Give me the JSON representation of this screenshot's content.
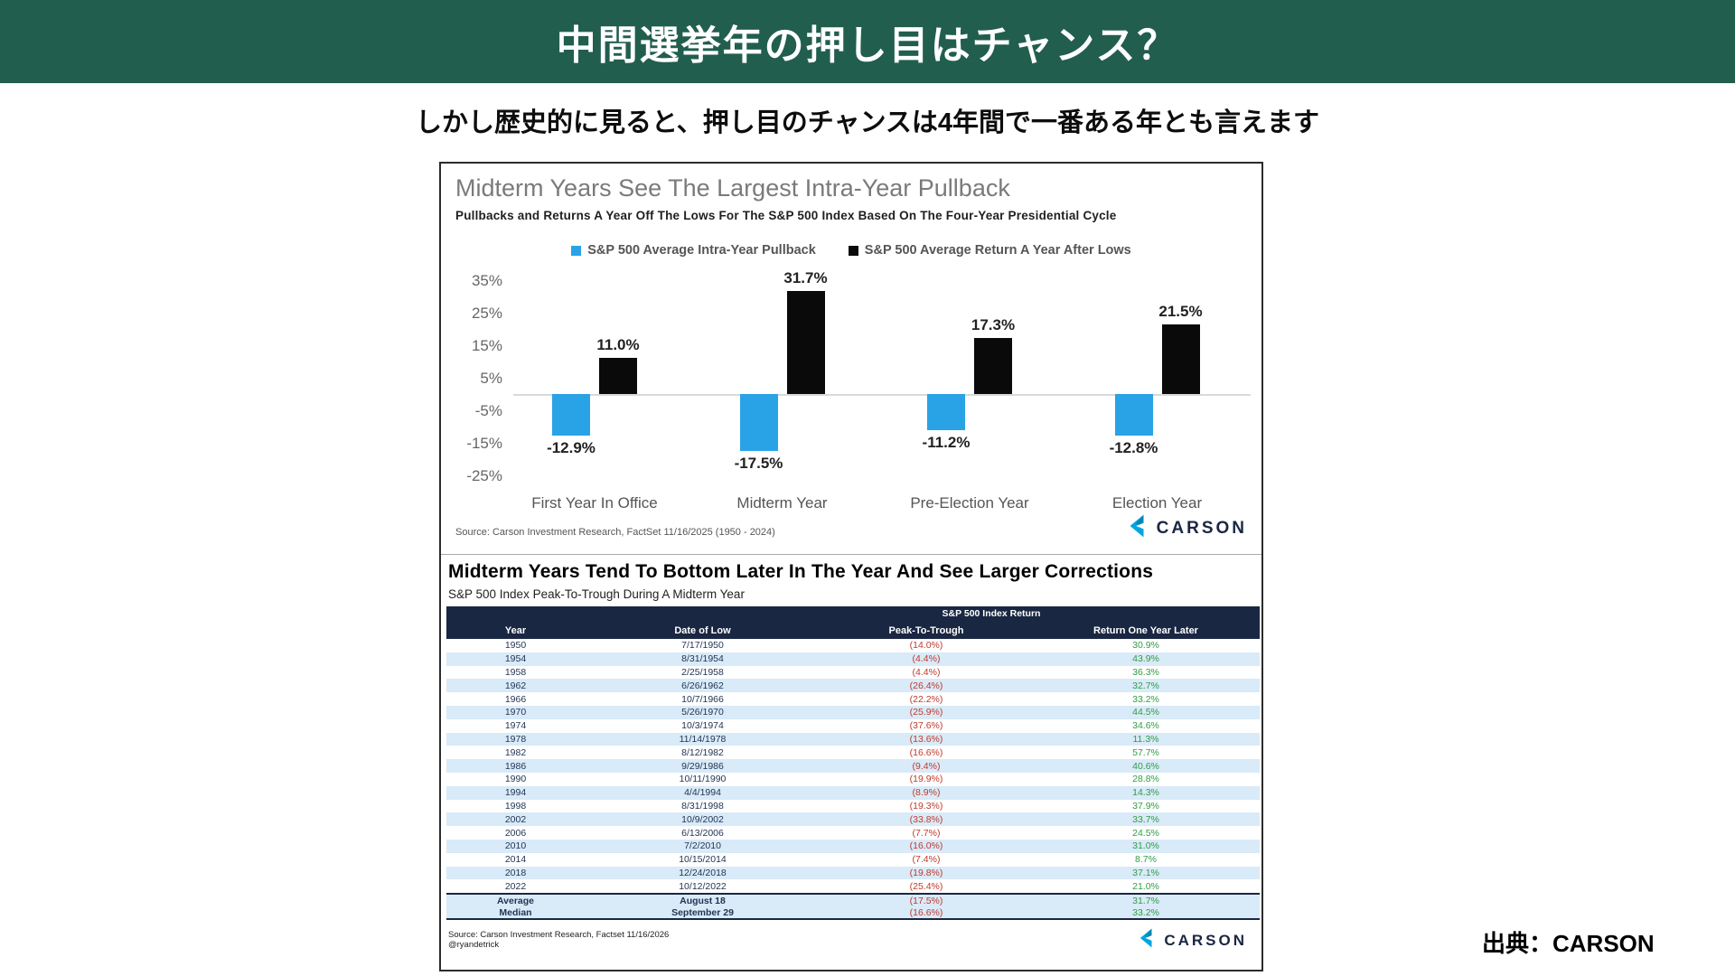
{
  "page": {
    "header_title": "中間選挙年の押し目はチャンス？",
    "subtitle": "しかし歴史的に見ると、押し目のチャンスは4年間で一番ある年とも言えます",
    "credit": "出典：CARSON",
    "header_color": "#215E4D"
  },
  "figure": {
    "chart": {
      "title": "Midterm Years See The Largest Intra-Year Pullback",
      "subtitle": "Pullbacks and Returns A Year Off The Lows For The S&P 500 Index Based On The Four-Year Presidential Cycle",
      "source": "Source: Carson Investment Research, FactSet 11/16/2025 (1950 - 2024)",
      "logo_text": "CARSON"
    },
    "table_section": {
      "title": "Midterm Years Tend To Bottom Later In The Year And See Larger Corrections",
      "subtitle": "S&P 500 Index Peak-To-Trough During A Midterm Year",
      "banner": "S&P 500 Index Return",
      "columns": [
        "Year",
        "Date of Low",
        "Peak-To-Trough",
        "Return One Year Later"
      ],
      "rows": [
        [
          "1950",
          "7/17/1950",
          "(14.0%)",
          "30.9%"
        ],
        [
          "1954",
          "8/31/1954",
          "(4.4%)",
          "43.9%"
        ],
        [
          "1958",
          "2/25/1958",
          "(4.4%)",
          "36.3%"
        ],
        [
          "1962",
          "6/26/1962",
          "(26.4%)",
          "32.7%"
        ],
        [
          "1966",
          "10/7/1966",
          "(22.2%)",
          "33.2%"
        ],
        [
          "1970",
          "5/26/1970",
          "(25.9%)",
          "44.5%"
        ],
        [
          "1974",
          "10/3/1974",
          "(37.6%)",
          "34.6%"
        ],
        [
          "1978",
          "11/14/1978",
          "(13.6%)",
          "11.3%"
        ],
        [
          "1982",
          "8/12/1982",
          "(16.6%)",
          "57.7%"
        ],
        [
          "1986",
          "9/29/1986",
          "(9.4%)",
          "40.6%"
        ],
        [
          "1990",
          "10/11/1990",
          "(19.9%)",
          "28.8%"
        ],
        [
          "1994",
          "4/4/1994",
          "(8.9%)",
          "14.3%"
        ],
        [
          "1998",
          "8/31/1998",
          "(19.3%)",
          "37.9%"
        ],
        [
          "2002",
          "10/9/2002",
          "(33.8%)",
          "33.7%"
        ],
        [
          "2006",
          "6/13/2006",
          "(7.7%)",
          "24.5%"
        ],
        [
          "2010",
          "7/2/2010",
          "(16.0%)",
          "31.0%"
        ],
        [
          "2014",
          "10/15/2014",
          "(7.4%)",
          "8.7%"
        ],
        [
          "2018",
          "12/24/2018",
          "(19.8%)",
          "37.1%"
        ],
        [
          "2022",
          "10/12/2022",
          "(25.4%)",
          "21.0%"
        ]
      ],
      "summary_rows": [
        [
          "Average",
          "August 18",
          "(17.5%)",
          "31.7%"
        ],
        [
          "Median",
          "September 29",
          "(16.6%)",
          "33.2%"
        ]
      ],
      "source_line1": "Source: Carson Investment Research, Factset 11/16/2026",
      "source_line2": "@ryandetrick",
      "logo_text": "CARSON",
      "colors": {
        "header_bg": "#1A2742",
        "row_alt": "#D9EAF8",
        "negative": "#C03A2B",
        "positive": "#2F9E44"
      }
    }
  },
  "chart_data": [
    {
      "type": "bar",
      "title": "Midterm Years See The Largest Intra-Year Pullback",
      "subtitle": "Pullbacks and Returns A Year Off The Lows For The S&P 500 Index Based On The Four-Year Presidential Cycle",
      "categories": [
        "First Year In Office",
        "Midterm Year",
        "Pre-Election Year",
        "Election Year"
      ],
      "series": [
        {
          "name": "S&P 500 Average Intra-Year Pullback",
          "color": "#29A3E6",
          "values": [
            -12.9,
            -17.5,
            -11.2,
            -12.8
          ]
        },
        {
          "name": "S&P 500 Average Return A Year After Lows",
          "color": "#0a0a0a",
          "values": [
            11.0,
            31.7,
            17.3,
            21.5
          ]
        }
      ],
      "y_ticks": [
        35,
        25,
        15,
        5,
        -5,
        -15,
        -25
      ],
      "ylim": [
        -28,
        38
      ],
      "ylabel": "",
      "xlabel": "",
      "grid": false,
      "legend_position": "top",
      "value_label_format": "percent_one_decimal"
    },
    {
      "type": "table",
      "title": "Midterm Years Tend To Bottom Later In The Year And See Larger Corrections",
      "subtitle": "S&P 500 Index Peak-To-Trough During A Midterm Year",
      "group_header": "S&P 500 Index Return",
      "columns": [
        "Year",
        "Date of Low",
        "Peak-To-Trough",
        "Return One Year Later"
      ],
      "rows": [
        [
          "1950",
          "7/17/1950",
          "(14.0%)",
          "30.9%"
        ],
        [
          "1954",
          "8/31/1954",
          "(4.4%)",
          "43.9%"
        ],
        [
          "1958",
          "2/25/1958",
          "(4.4%)",
          "36.3%"
        ],
        [
          "1962",
          "6/26/1962",
          "(26.4%)",
          "32.7%"
        ],
        [
          "1966",
          "10/7/1966",
          "(22.2%)",
          "33.2%"
        ],
        [
          "1970",
          "5/26/1970",
          "(25.9%)",
          "44.5%"
        ],
        [
          "1974",
          "10/3/1974",
          "(37.6%)",
          "34.6%"
        ],
        [
          "1978",
          "11/14/1978",
          "(13.6%)",
          "11.3%"
        ],
        [
          "1982",
          "8/12/1982",
          "(16.6%)",
          "57.7%"
        ],
        [
          "1986",
          "9/29/1986",
          "(9.4%)",
          "40.6%"
        ],
        [
          "1990",
          "10/11/1990",
          "(19.9%)",
          "28.8%"
        ],
        [
          "1994",
          "4/4/1994",
          "(8.9%)",
          "14.3%"
        ],
        [
          "1998",
          "8/31/1998",
          "(19.3%)",
          "37.9%"
        ],
        [
          "2002",
          "10/9/2002",
          "(33.8%)",
          "33.7%"
        ],
        [
          "2006",
          "6/13/2006",
          "(7.7%)",
          "24.5%"
        ],
        [
          "2010",
          "7/2/2010",
          "(16.0%)",
          "31.0%"
        ],
        [
          "2014",
          "10/15/2014",
          "(7.4%)",
          "8.7%"
        ],
        [
          "2018",
          "12/24/2018",
          "(19.8%)",
          "37.1%"
        ],
        [
          "2022",
          "10/12/2022",
          "(25.4%)",
          "21.0%"
        ]
      ],
      "summary_rows": [
        [
          "Average",
          "August 18",
          "(17.5%)",
          "31.7%"
        ],
        [
          "Median",
          "September 29",
          "(16.6%)",
          "33.2%"
        ]
      ]
    }
  ]
}
